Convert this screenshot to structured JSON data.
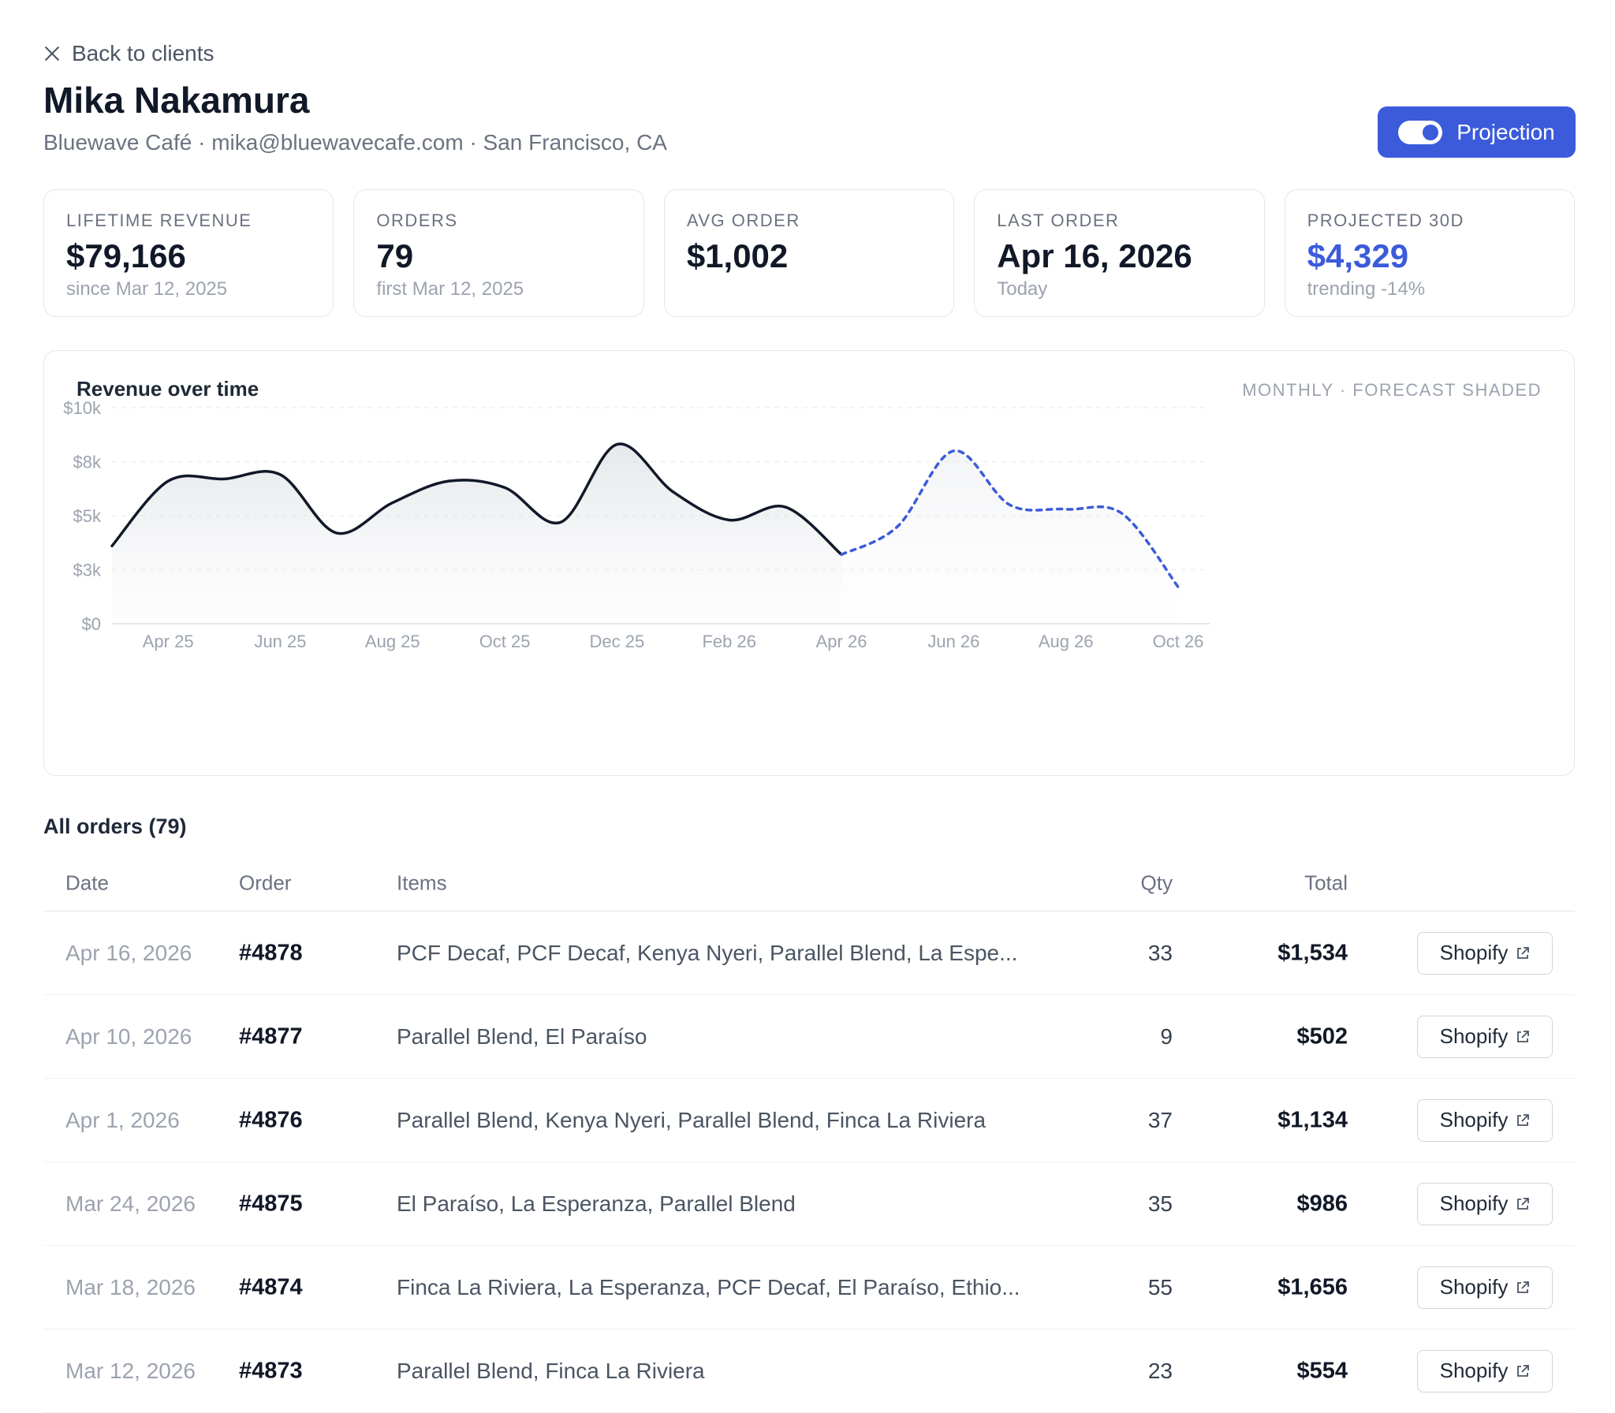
{
  "nav": {
    "back_label": "Back to clients"
  },
  "client": {
    "name": "Mika Nakamura",
    "subtitle": "Bluewave Café · mika@bluewavecafe.com · San Francisco, CA"
  },
  "projection_toggle": {
    "label": "Projection",
    "on": true
  },
  "kpis": [
    {
      "label": "LIFETIME REVENUE",
      "value": "$79,166",
      "sub": "since Mar 12, 2025"
    },
    {
      "label": "ORDERS",
      "value": "79",
      "sub": "first Mar 12, 2025"
    },
    {
      "label": "AVG ORDER",
      "value": "$1,002",
      "sub": ""
    },
    {
      "label": "LAST ORDER",
      "value": "Apr 16, 2026",
      "sub": "Today"
    },
    {
      "label": "PROJECTED 30D",
      "value": "$4,329",
      "sub": "trending -14%"
    }
  ],
  "chart": {
    "title": "Revenue over time",
    "note": "MONTHLY · FORECAST SHADED"
  },
  "chart_data": {
    "type": "area",
    "title": "Revenue over time",
    "y_ticks": [
      "$10k",
      "$8k",
      "$5k",
      "$3k",
      "$0"
    ],
    "y_tick_values": [
      10000,
      7500,
      5000,
      2500,
      0
    ],
    "x_ticks": [
      "Apr 25",
      "Jun 25",
      "Aug 25",
      "Oct 25",
      "Dec 25",
      "Feb 26",
      "Apr 26",
      "Jun 26",
      "Aug 26",
      "Oct 26"
    ],
    "ylim": [
      0,
      10000
    ],
    "grid": true,
    "x": [
      "Mar 25",
      "Apr 25",
      "May 25",
      "Jun 25",
      "Jul 25",
      "Aug 25",
      "Sep 25",
      "Oct 25",
      "Nov 25",
      "Dec 25",
      "Jan 26",
      "Feb 26",
      "Mar 26",
      "Apr 26",
      "May 26",
      "Jun 26",
      "Jul 26",
      "Aug 26",
      "Sep 26",
      "Oct 26"
    ],
    "series": [
      {
        "values": [
          3600,
          6600,
          6700,
          6900,
          4200,
          5600,
          6600,
          6300,
          4700,
          8300,
          6100,
          4800,
          5400,
          3200,
          null,
          null,
          null,
          null,
          null,
          null
        ]
      },
      {
        "values": [
          null,
          null,
          null,
          null,
          null,
          null,
          null,
          null,
          null,
          null,
          null,
          null,
          null,
          3200,
          4500,
          8000,
          5500,
          5300,
          5100,
          1700
        ]
      }
    ],
    "colors": {
      "actual": "#111827",
      "forecast": "#3b5bdb"
    }
  },
  "orders": {
    "title": "All orders (79)",
    "columns": {
      "date": "Date",
      "order": "Order",
      "items": "Items",
      "qty": "Qty",
      "total": "Total"
    },
    "rows": [
      {
        "date": "Apr 16, 2026",
        "order": "#4878",
        "items": "PCF Decaf, PCF Decaf, Kenya Nyeri, Parallel Blend, La Espe...",
        "qty": "33",
        "total": "$1,534",
        "action": "Shopify"
      },
      {
        "date": "Apr 10, 2026",
        "order": "#4877",
        "items": "Parallel Blend, El Paraíso",
        "qty": "9",
        "total": "$502",
        "action": "Shopify"
      },
      {
        "date": "Apr 1, 2026",
        "order": "#4876",
        "items": "Parallel Blend, Kenya Nyeri, Parallel Blend, Finca La Riviera",
        "qty": "37",
        "total": "$1,134",
        "action": "Shopify"
      },
      {
        "date": "Mar 24, 2026",
        "order": "#4875",
        "items": "El Paraíso, La Esperanza, Parallel Blend",
        "qty": "35",
        "total": "$986",
        "action": "Shopify"
      },
      {
        "date": "Mar 18, 2026",
        "order": "#4874",
        "items": "Finca La Riviera, La Esperanza, PCF Decaf, El Paraíso, Ethio...",
        "qty": "55",
        "total": "$1,656",
        "action": "Shopify"
      },
      {
        "date": "Mar 12, 2026",
        "order": "#4873",
        "items": "Parallel Blend, Finca La Riviera",
        "qty": "23",
        "total": "$554",
        "action": "Shopify"
      }
    ]
  }
}
